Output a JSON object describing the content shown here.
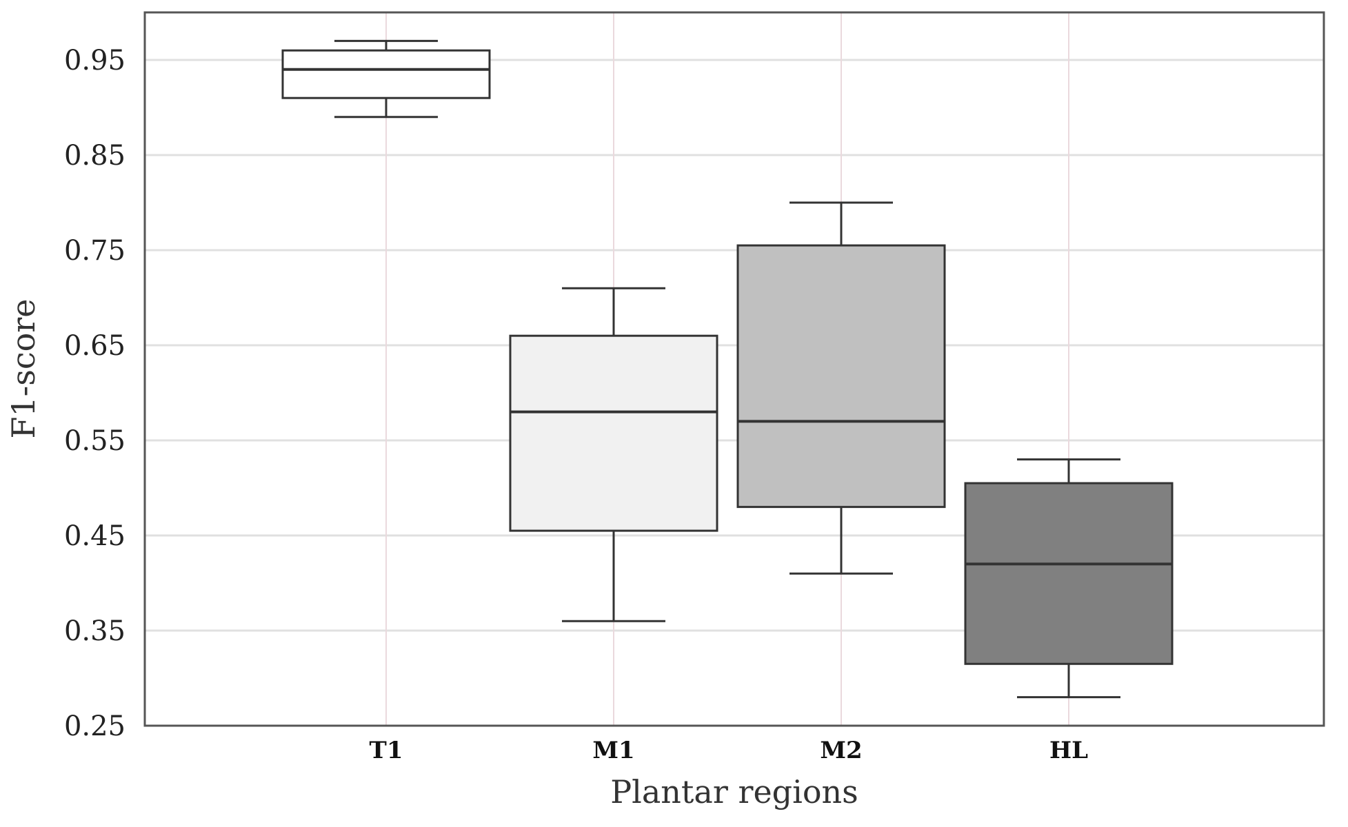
{
  "chart_data": {
    "type": "box",
    "xlabel": "Plantar regions",
    "ylabel": "F1-score",
    "ylim": [
      0.25,
      1.0
    ],
    "yticks": [
      "0.25",
      "0.35",
      "0.45",
      "0.55",
      "0.65",
      "0.75",
      "0.85",
      "0.95"
    ],
    "grid": true,
    "categories": [
      "T1",
      "M1",
      "M2",
      "HL"
    ],
    "boxes": [
      {
        "label": "T1",
        "whisker_low": 0.89,
        "q1": 0.91,
        "median": 0.94,
        "q3": 0.96,
        "whisker_high": 0.97,
        "fill": "#ffffff"
      },
      {
        "label": "M1",
        "whisker_low": 0.36,
        "q1": 0.455,
        "median": 0.58,
        "q3": 0.66,
        "whisker_high": 0.71,
        "fill": "#f1f1f1"
      },
      {
        "label": "M2",
        "whisker_low": 0.41,
        "q1": 0.48,
        "median": 0.57,
        "q3": 0.755,
        "whisker_high": 0.8,
        "fill": "#c0c0c0"
      },
      {
        "label": "HL",
        "whisker_low": 0.28,
        "q1": 0.315,
        "median": 0.42,
        "q3": 0.505,
        "whisker_high": 0.53,
        "fill": "#808080"
      }
    ]
  }
}
